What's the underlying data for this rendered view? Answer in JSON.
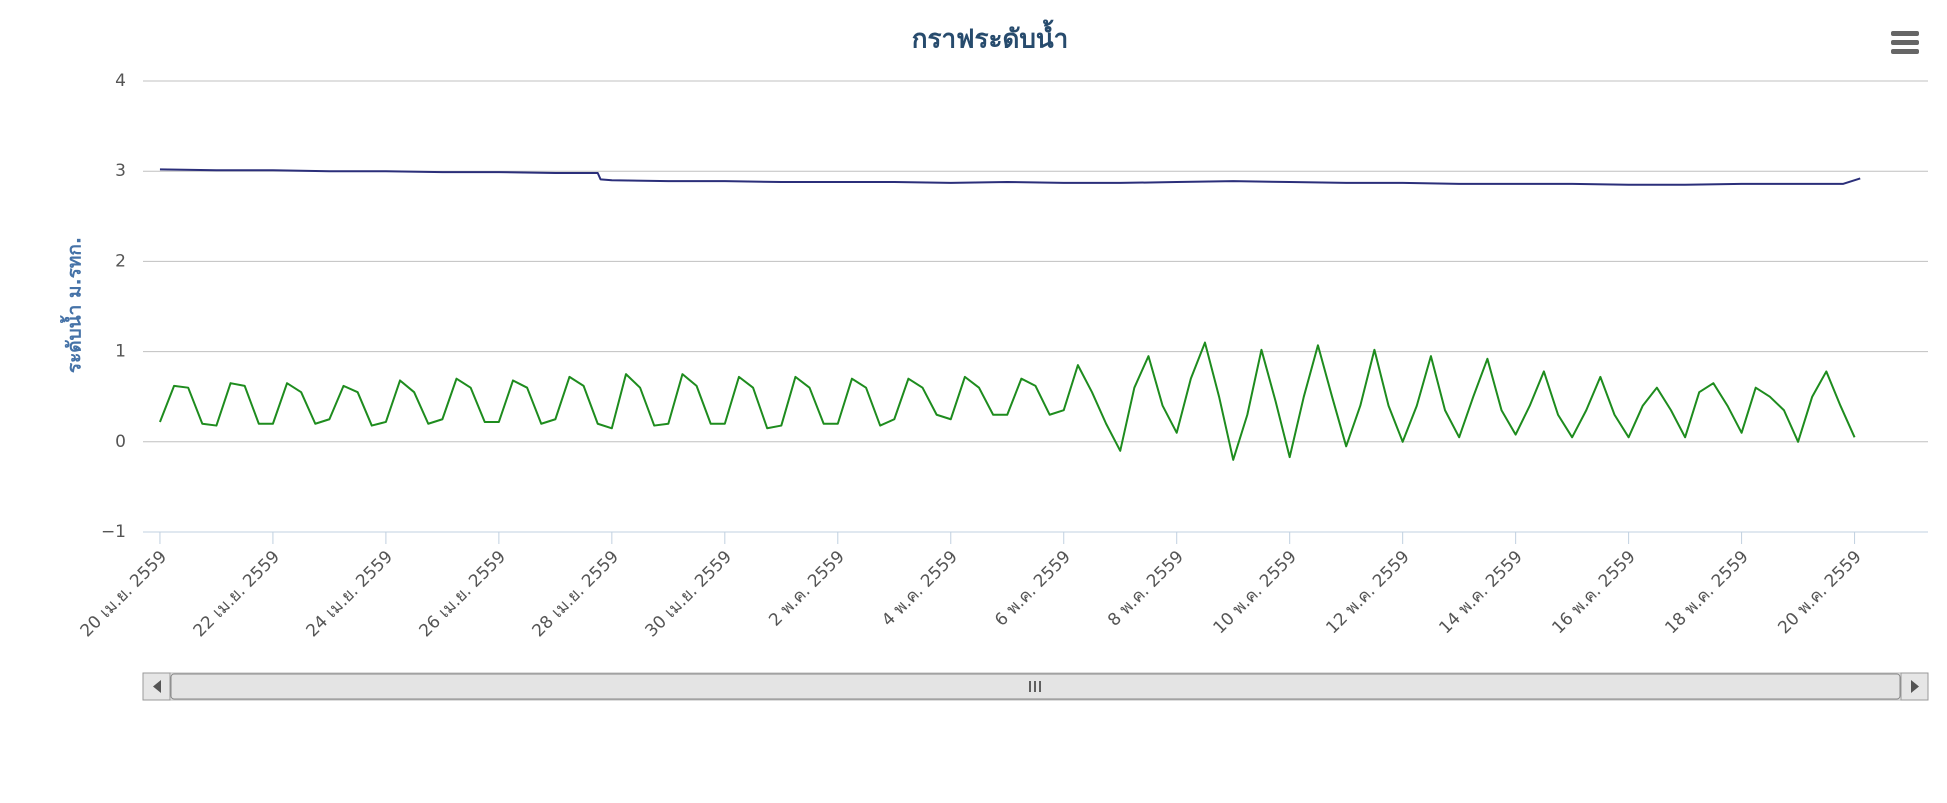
{
  "chart_data": {
    "type": "line",
    "title": "กราฟระดับน้ำ",
    "y_label": "ระดับน้ำ ม.รทก.",
    "grid": true,
    "ylim": [
      -1,
      4
    ],
    "yticks": [
      {
        "value": -1,
        "label": "−1"
      },
      0,
      1,
      2,
      3,
      4
    ],
    "xlim": [
      -0.3,
      31.3
    ],
    "xticks": [
      {
        "value": 0,
        "label": "20 เม.ย. 2559"
      },
      {
        "value": 2,
        "label": "22 เม.ย. 2559"
      },
      {
        "value": 4,
        "label": "24 เม.ย. 2559"
      },
      {
        "value": 6,
        "label": "26 เม.ย. 2559"
      },
      {
        "value": 8,
        "label": "28 เม.ย. 2559"
      },
      {
        "value": 10,
        "label": "30 เม.ย. 2559"
      },
      {
        "value": 12,
        "label": "2 พ.ค. 2559"
      },
      {
        "value": 14,
        "label": "4 พ.ค. 2559"
      },
      {
        "value": 16,
        "label": "6 พ.ค. 2559"
      },
      {
        "value": 18,
        "label": "8 พ.ค. 2559"
      },
      {
        "value": 20,
        "label": "10 พ.ค. 2559"
      },
      {
        "value": 22,
        "label": "12 พ.ค. 2559"
      },
      {
        "value": 24,
        "label": "14 พ.ค. 2559"
      },
      {
        "value": 26,
        "label": "16 พ.ค. 2559"
      },
      {
        "value": 28,
        "label": "18 พ.ค. 2559"
      },
      {
        "value": 30,
        "label": "20 พ.ค. 2559"
      }
    ],
    "series": [
      {
        "color": "#2b2f7a",
        "x": [
          0,
          1,
          2,
          3,
          4,
          5,
          6,
          7,
          7.75,
          7.8,
          8,
          9,
          10,
          11,
          12,
          13,
          14,
          15,
          16,
          17,
          18,
          19,
          20,
          21,
          22,
          23,
          24,
          25,
          26,
          27,
          28,
          29,
          29.8,
          30.1
        ],
        "values": [
          3.02,
          3.01,
          3.01,
          3.0,
          3.0,
          2.99,
          2.99,
          2.98,
          2.98,
          2.91,
          2.9,
          2.89,
          2.89,
          2.88,
          2.88,
          2.88,
          2.87,
          2.88,
          2.87,
          2.87,
          2.88,
          2.89,
          2.88,
          2.87,
          2.87,
          2.86,
          2.86,
          2.86,
          2.85,
          2.85,
          2.86,
          2.86,
          2.86,
          2.92
        ]
      },
      {
        "color": "#1e8c1e",
        "x": [
          0,
          0.25,
          0.5,
          0.75,
          1,
          1.25,
          1.5,
          1.75,
          2,
          2.25,
          2.5,
          2.75,
          3,
          3.25,
          3.5,
          3.75,
          4,
          4.25,
          4.5,
          4.75,
          5,
          5.25,
          5.5,
          5.75,
          6,
          6.25,
          6.5,
          6.75,
          7,
          7.25,
          7.5,
          7.75,
          8,
          8.25,
          8.5,
          8.75,
          9,
          9.25,
          9.5,
          9.75,
          10,
          10.25,
          10.5,
          10.75,
          11,
          11.25,
          11.5,
          11.75,
          12,
          12.25,
          12.5,
          12.75,
          13,
          13.25,
          13.5,
          13.75,
          14,
          14.25,
          14.5,
          14.75,
          15,
          15.25,
          15.5,
          15.75,
          16,
          16.25,
          16.5,
          16.75,
          17,
          17.25,
          17.5,
          17.75,
          18,
          18.25,
          18.5,
          18.75,
          19,
          19.25,
          19.5,
          19.75,
          20,
          20.25,
          20.5,
          20.75,
          21,
          21.25,
          21.5,
          21.75,
          22,
          22.25,
          22.5,
          22.75,
          23,
          23.25,
          23.5,
          23.75,
          24,
          24.25,
          24.5,
          24.75,
          25,
          25.25,
          25.5,
          25.75,
          26,
          26.25,
          26.5,
          26.75,
          27,
          27.25,
          27.5,
          27.75,
          28,
          28.25,
          28.5,
          28.75,
          29,
          29.25,
          29.5,
          29.75,
          30
        ],
        "values": [
          0.22,
          0.62,
          0.6,
          0.2,
          0.18,
          0.65,
          0.62,
          0.2,
          0.2,
          0.65,
          0.55,
          0.2,
          0.25,
          0.62,
          0.55,
          0.18,
          0.22,
          0.68,
          0.55,
          0.2,
          0.25,
          0.7,
          0.6,
          0.22,
          0.22,
          0.68,
          0.6,
          0.2,
          0.25,
          0.72,
          0.62,
          0.2,
          0.15,
          0.75,
          0.6,
          0.18,
          0.2,
          0.75,
          0.62,
          0.2,
          0.2,
          0.72,
          0.6,
          0.15,
          0.18,
          0.72,
          0.6,
          0.2,
          0.2,
          0.7,
          0.6,
          0.18,
          0.25,
          0.7,
          0.6,
          0.3,
          0.25,
          0.72,
          0.6,
          0.3,
          0.3,
          0.7,
          0.62,
          0.3,
          0.35,
          0.85,
          0.55,
          0.2,
          -0.1,
          0.6,
          0.95,
          0.4,
          0.1,
          0.7,
          1.1,
          0.5,
          -0.2,
          0.3,
          1.02,
          0.45,
          -0.17,
          0.5,
          1.07,
          0.5,
          -0.05,
          0.4,
          1.02,
          0.4,
          0.0,
          0.4,
          0.95,
          0.35,
          0.05,
          0.5,
          0.92,
          0.35,
          0.08,
          0.4,
          0.78,
          0.3,
          0.05,
          0.35,
          0.72,
          0.3,
          0.05,
          0.4,
          0.6,
          0.35,
          0.05,
          0.55,
          0.65,
          0.4,
          0.1,
          0.6,
          0.5,
          0.35,
          0.0,
          0.5,
          0.78,
          0.4,
          0.05
        ]
      }
    ]
  }
}
